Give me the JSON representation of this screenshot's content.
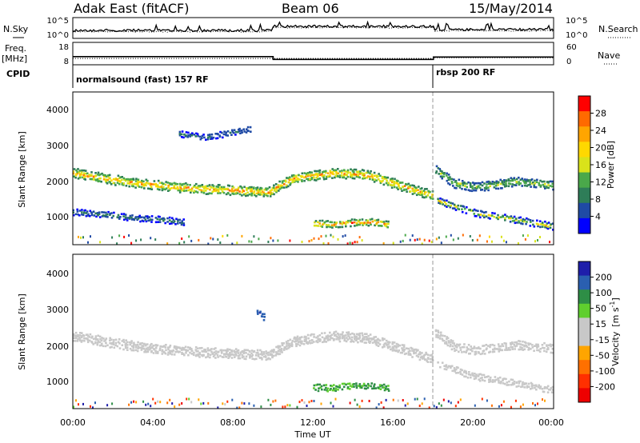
{
  "header": {
    "station": "Adak East (fitACF)",
    "beam": "Beam 06",
    "date": "15/May/2014"
  },
  "strips": {
    "nsky_label": "N.Sky",
    "nsearch_label": "N.Search",
    "freq_label_1": "Freq.",
    "freq_label_2": "[MHz]",
    "nave_label": "Nave",
    "cpid_label": "CPID",
    "noise_left_ticks": [
      "10^5",
      "10^0"
    ],
    "noise_right_ticks": [
      "10^5",
      "10^0"
    ],
    "freq_left_ticks": [
      "18",
      "8"
    ],
    "freq_right_ticks": [
      "60",
      "0"
    ],
    "cpid_segments": [
      {
        "name": "normalsound (fast) 157 RF",
        "start_hour": 0,
        "end_hour": 18
      },
      {
        "name": "rbsp 200 RF",
        "start_hour": 18,
        "end_hour": 24
      }
    ],
    "freq_series": [
      {
        "start_hour": 0,
        "end_hour": 10,
        "value_mhz": 12
      },
      {
        "start_hour": 10,
        "end_hour": 18,
        "value_mhz": 10.5
      },
      {
        "start_hour": 18,
        "end_hour": 24,
        "value_mhz": 11.8
      }
    ],
    "nave_series": [
      {
        "start_hour": 0,
        "end_hour": 18,
        "value": 18
      },
      {
        "start_hour": 18,
        "end_hour": 24,
        "value": 20
      }
    ]
  },
  "axes": {
    "ylabel": "Slant Range [km]",
    "xlabel": "Time UT",
    "x_ticks": [
      "00:00",
      "04:00",
      "08:00",
      "12:00",
      "16:00",
      "20:00",
      "00:00"
    ],
    "y_ticks": [
      "1000",
      "2000",
      "3000",
      "4000"
    ]
  },
  "colorbars": {
    "power": {
      "label": "Power [dB]",
      "ticks": [
        "28",
        "24",
        "20",
        "16",
        "12",
        "8",
        "4"
      ],
      "colors": [
        "#ff0000",
        "#ff6a00",
        "#ffa500",
        "#ffd800",
        "#d9e21a",
        "#4aa84a",
        "#2e7d58",
        "#1f4aa5",
        "#0000ff"
      ]
    },
    "velocity": {
      "label_line1": "Velocity",
      "label_line2": "[m s",
      "label_sup": "-1",
      "label_end": "]",
      "ticks": [
        "200",
        "100",
        "50",
        "15",
        "-15",
        "-50",
        "-100",
        "-200"
      ],
      "colors": [
        "#1e1eaa",
        "#2a5fb0",
        "#2e8e46",
        "#5fcf2e",
        "#c8c8c8",
        "#c8c8c8",
        "#ffa500",
        "#ff7000",
        "#ff3000",
        "#ee0000"
      ]
    }
  },
  "chart_data": [
    {
      "type": "scatter",
      "name": "Power panel",
      "xlabel": "Time UT",
      "ylabel": "Slant Range [km]",
      "xlim": [
        0,
        24
      ],
      "ylim": [
        180,
        4600
      ],
      "colorbar_label": "Power [dB]",
      "colorbar_range": [
        0,
        32
      ],
      "bands": [
        {
          "points": [
            [
              0,
              2250
            ],
            [
              2,
              2050
            ],
            [
              4,
              1900
            ],
            [
              6,
              1800
            ],
            [
              8,
              1750
            ],
            [
              9.8,
              1700
            ],
            [
              10.2,
              1850
            ],
            [
              11,
              2100
            ],
            [
              13,
              2250
            ],
            [
              14.6,
              2200
            ],
            [
              16,
              1950
            ],
            [
              17.9,
              1600
            ]
          ],
          "width_km": 220,
          "power_db": [
            10,
            28
          ]
        },
        {
          "points": [
            [
              18.1,
              2350
            ],
            [
              19,
              1950
            ],
            [
              20,
              1850
            ],
            [
              21,
              1900
            ],
            [
              22,
              2000
            ],
            [
              24,
              1900
            ]
          ],
          "width_km": 200,
          "power_db": [
            6,
            20
          ]
        },
        {
          "points": [
            [
              0,
              1120
            ],
            [
              1.5,
              1050
            ],
            [
              3,
              950
            ],
            [
              4.5,
              900
            ],
            [
              5.5,
              820
            ]
          ],
          "width_km": 120,
          "power_db": [
            4,
            12
          ]
        },
        {
          "points": [
            [
              12,
              780
            ],
            [
              13,
              770
            ],
            [
              14,
              820
            ],
            [
              15,
              830
            ],
            [
              15.7,
              760
            ]
          ],
          "width_km": 140,
          "power_db": [
            12,
            30
          ]
        },
        {
          "points": [
            [
              18.2,
              1450
            ],
            [
              20,
              1100
            ],
            [
              22,
              900
            ],
            [
              24,
              700
            ]
          ],
          "width_km": 140,
          "power_db": [
            4,
            26
          ]
        },
        {
          "points": [
            [
              5.3,
              3380
            ],
            [
              6.5,
              3280
            ],
            [
              7.5,
              3380
            ],
            [
              8.8,
              3520
            ]
          ],
          "width_km": 120,
          "power_db": [
            4,
            10
          ]
        }
      ]
    },
    {
      "type": "scatter",
      "name": "Velocity panel",
      "xlabel": "Time UT",
      "ylabel": "Slant Range [km]",
      "xlim": [
        0,
        24
      ],
      "ylim": [
        180,
        4600
      ],
      "colorbar_label": "Velocity [m s-1]",
      "colorbar_range": [
        -200,
        200
      ],
      "bands": [
        {
          "points": [
            [
              0,
              2250
            ],
            [
              2,
              2050
            ],
            [
              4,
              1900
            ],
            [
              6,
              1800
            ],
            [
              8,
              1750
            ],
            [
              9.8,
              1700
            ],
            [
              10.2,
              1850
            ],
            [
              11,
              2100
            ],
            [
              13,
              2250
            ],
            [
              14.6,
              2200
            ],
            [
              16,
              1950
            ],
            [
              17.9,
              1600
            ]
          ],
          "width_km": 220,
          "velocity": [
            -15,
            15
          ]
        },
        {
          "points": [
            [
              18.1,
              2350
            ],
            [
              19,
              1950
            ],
            [
              20,
              1850
            ],
            [
              21,
              1900
            ],
            [
              22,
              2000
            ],
            [
              24,
              1900
            ]
          ],
          "width_km": 200,
          "velocity": [
            -15,
            15
          ]
        },
        {
          "points": [
            [
              12,
              780
            ],
            [
              13,
              770
            ],
            [
              14,
              820
            ],
            [
              15,
              830
            ],
            [
              15.7,
              760
            ]
          ],
          "width_km": 140,
          "velocity": [
            15,
            50
          ]
        },
        {
          "points": [
            [
              9.2,
              2950
            ],
            [
              9.5,
              2800
            ]
          ],
          "width_km": 120,
          "velocity": [
            100,
            200
          ]
        },
        {
          "points": [
            [
              18.2,
              1450
            ],
            [
              20,
              1100
            ],
            [
              22,
              900
            ],
            [
              24,
              700
            ]
          ],
          "width_km": 140,
          "velocity": [
            -15,
            15
          ]
        }
      ]
    }
  ]
}
